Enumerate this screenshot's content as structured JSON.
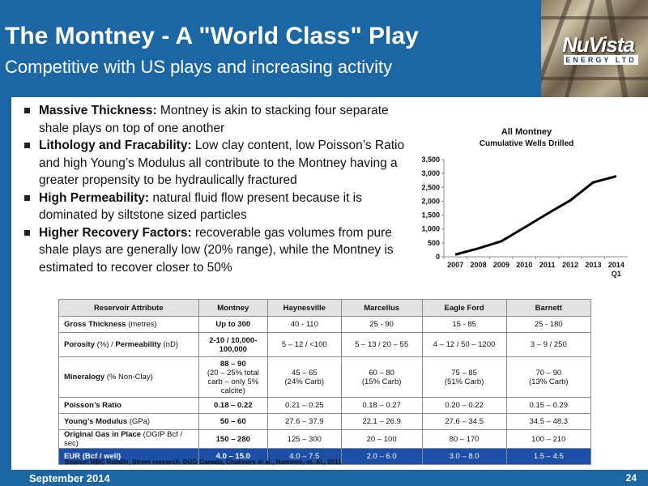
{
  "slide": {
    "title": "The Montney - A \"World Class\" Play",
    "subtitle": "Competitive with US plays and increasing activity",
    "logo": {
      "main": "NuVista",
      "sub": "ENERGY LTD"
    },
    "footer": {
      "date": "September 2014",
      "page": "24"
    },
    "source": "Source: RBC Rundle, Street research. DUG Canada, Chalmers et al., Hammes, et.  Al., 2011"
  },
  "bullets": [
    {
      "head": "Massive Thickness:",
      "text": " Montney is akin to stacking four separate shale plays on top of one another"
    },
    {
      "head": "Lithology and Fracability:",
      "text": " Low clay content, low Poisson’s Ratio and high Young’s Modulus all contribute to the Montney having a greater propensity to be hydraulically fractured"
    },
    {
      "head": "High Permeability:",
      "text": " natural fluid flow present because it is dominated by siltstone sized particles"
    },
    {
      "head": "Higher Recovery Factors:",
      "text": " recoverable gas volumes from pure shale plays are generally low (20% range), while the Montney is estimated to recover closer to 50%"
    }
  ],
  "chart_data": {
    "type": "line",
    "title": "All Montney",
    "subtitle": "Cumulative Wells Drilled",
    "categories": [
      "2007",
      "2008",
      "2009",
      "2010",
      "2011",
      "2012",
      "2013",
      "2014\nQ1"
    ],
    "series": [
      {
        "values": [
          80,
          300,
          560,
          1050,
          1550,
          2030,
          2680,
          2900
        ]
      }
    ],
    "y_ticks": [
      "0",
      "500",
      "1,000",
      "1,500",
      "2,000",
      "2,500",
      "3,000",
      "3,500"
    ],
    "ylim": [
      0,
      3500
    ],
    "grid": false,
    "legend": "none",
    "line_color": "#000000"
  },
  "table": {
    "headers": [
      "Reservoir Attribute",
      "Montney",
      "Haynesville",
      "Marcellus",
      "Eagle Ford",
      "Barnett"
    ],
    "rows": [
      {
        "label": "Gross Thickness",
        "unit": " (metres)",
        "cells": [
          "Up to 300",
          "40 - 110",
          "25 - 90",
          "15 - 85",
          "25 - 180"
        ]
      },
      {
        "label": "Porosity",
        "unit": " (%) / ",
        "label2": "Permeability",
        "unit2": " (nD)",
        "cells": [
          "2-10 / 10,000-100,000",
          "5 – 12 / <100",
          "5 – 13 / 20 – 55",
          "4 – 12 / 50 – 1200",
          "3 – 9 / 250"
        ]
      },
      {
        "label": "Mineralogy",
        "unit": " (% Non-Clay)",
        "cells": [
          "88 – 90",
          "45 – 65",
          "60 – 80",
          "75 – 85",
          "70 – 90"
        ],
        "cells2": [
          "(20 – 25% total carb – only 5% calcite)",
          "(24% Carb)",
          "(15% Carb)",
          "(51% Carb)",
          "(13% Carb)"
        ]
      },
      {
        "label": "Poisson’s Ratio",
        "unit": "",
        "cells": [
          "0.18 – 0.22",
          "0.21 – 0.25",
          "0.18 – 0.27",
          "0.20 – 0.22",
          "0.15 – 0.29"
        ]
      },
      {
        "label": "Young’s Modulus",
        "unit": " (GPa)",
        "cells": [
          "50 – 60",
          "27.6 – 37.9",
          "22.1 – 26.9",
          "27.6 – 34.5",
          "34.5 – 48.3"
        ]
      },
      {
        "label": "Original Gas in Place",
        "unit": " (OGIP Bcf / sec)",
        "cells": [
          "150 – 280",
          "125 – 300",
          "20 – 100",
          "80 – 170",
          "100 – 210"
        ]
      },
      {
        "label": "EUR (Bcf / well)",
        "unit": "",
        "cells": [
          "4.0 – 15.0",
          "4.0 – 7.5",
          "2.0 – 6.0",
          "3.0 – 8.0",
          "1.5 – 4.5"
        ]
      }
    ]
  },
  "colors": {
    "brand_blue": "#1b66a3",
    "eur_row": "#1b4fa8"
  }
}
